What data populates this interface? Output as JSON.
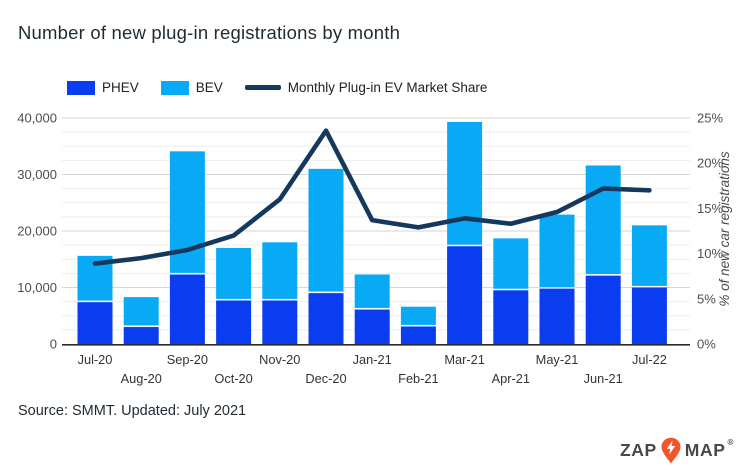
{
  "header": {
    "title": "Number of new plug-in registrations by month"
  },
  "legend": {
    "items": [
      {
        "label": "PHEV",
        "swatch": "box",
        "color": "#0a3cf0"
      },
      {
        "label": "BEV",
        "swatch": "box",
        "color": "#09aaf5"
      },
      {
        "label": "Monthly Plug-in EV Market Share",
        "swatch": "line",
        "color": "#15395c"
      }
    ]
  },
  "chart_data": {
    "type": "bar",
    "subtype": "stacked-bars-with-line-overlay",
    "title": "Number of new plug-in registrations by month",
    "categories": [
      "Jul-20",
      "Aug-20",
      "Sep-20",
      "Oct-20",
      "Nov-20",
      "Dec-20",
      "Jan-21",
      "Feb-21",
      "Mar-21",
      "Apr-21",
      "May-21",
      "Jun-21",
      "Jul-22"
    ],
    "series": [
      {
        "name": "PHEV",
        "type": "bar",
        "stacked": true,
        "axis": "left",
        "color": "#0a3cf0",
        "values": [
          7400,
          3000,
          12300,
          7700,
          7700,
          9000,
          6100,
          3100,
          17300,
          9500,
          9800,
          12100,
          10000
        ]
      },
      {
        "name": "BEV",
        "type": "bar",
        "stacked": true,
        "axis": "left",
        "color": "#09aaf5",
        "values": [
          8200,
          5300,
          21800,
          9300,
          10300,
          22000,
          6200,
          3500,
          22000,
          9200,
          13100,
          19500,
          11000
        ]
      },
      {
        "name": "Monthly Plug-in EV Market Share",
        "type": "line",
        "axis": "right",
        "color": "#15395c",
        "values": [
          8.9,
          9.5,
          10.4,
          12.0,
          16.0,
          23.6,
          13.7,
          12.9,
          13.9,
          13.3,
          14.6,
          17.2,
          17.0
        ]
      }
    ],
    "left_axis": {
      "min": 0,
      "max": 40000,
      "major_step": 10000,
      "minor_step": 2500,
      "tick_values": [
        0,
        10000,
        20000,
        30000,
        40000
      ],
      "tick_labels": [
        "0",
        "10,000",
        "20,000",
        "30,000",
        "40,000"
      ],
      "label": ""
    },
    "right_axis": {
      "min": 0,
      "max": 25,
      "step": 5,
      "tick_values": [
        0,
        5,
        10,
        15,
        20,
        25
      ],
      "tick_labels": [
        "0%",
        "5%",
        "10%",
        "15%",
        "20%",
        "25%"
      ],
      "label": "% of new car registrations"
    },
    "grid": true,
    "legend_position": "top"
  },
  "footer": {
    "source": "Source: SMMT. Updated: July 2021"
  },
  "logo": {
    "zap": "ZAP",
    "map": "MAP",
    "reg": "®",
    "pin_color": "#f1562b",
    "bolt_color": "#ffffff",
    "text_color": "#45494c"
  },
  "colors": {
    "background": "#ffffff",
    "grid_major": "#d6d6d6",
    "grid_minor": "#ededed",
    "axis_line": "#2b2b2b",
    "tick_text": "#4d4d4d",
    "x_label_text": "#333333",
    "right_axis_title_text": "#45494c"
  }
}
